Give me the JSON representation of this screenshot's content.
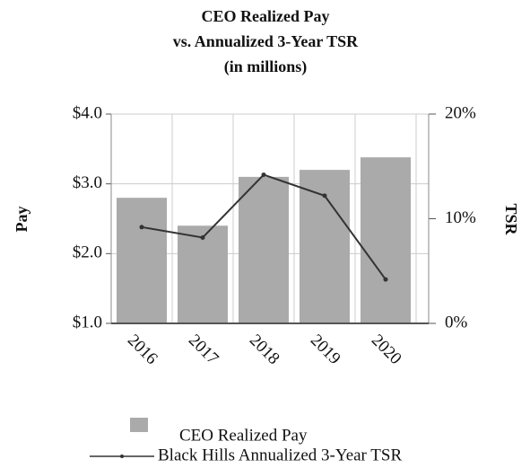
{
  "chart_data": {
    "type": "bar",
    "title": [
      "CEO Realized Pay",
      "vs. Annualized 3-Year TSR",
      "(in millions)"
    ],
    "y_label": "Pay",
    "y2_label": "TSR",
    "categories": [
      "2016",
      "2017",
      "2018",
      "2019",
      "2020"
    ],
    "series": [
      {
        "name": "CEO Realized Pay",
        "type": "bar",
        "color": "#aaaaaa",
        "values": [
          2.8,
          2.4,
          3.1,
          3.2,
          3.38
        ]
      },
      {
        "name": "Black Hills Annualized 3-Year TSR",
        "type": "line",
        "axis": "y2",
        "color": "#333333",
        "values": [
          9.2,
          8.2,
          14.2,
          12.2,
          4.2
        ]
      }
    ],
    "ylim": [
      1.0,
      4.0
    ],
    "yticks": [
      {
        "value": 1.0,
        "label": "$1.0"
      },
      {
        "value": 2.0,
        "label": "$2.0"
      },
      {
        "value": 3.0,
        "label": "$3.0"
      },
      {
        "value": 4.0,
        "label": "$4.0"
      }
    ],
    "y2lim": [
      0,
      20
    ],
    "y2ticks": [
      {
        "value": 0,
        "label": "0%"
      },
      {
        "value": 10,
        "label": "10%"
      },
      {
        "value": 20,
        "label": "20%"
      }
    ],
    "grid": true
  }
}
